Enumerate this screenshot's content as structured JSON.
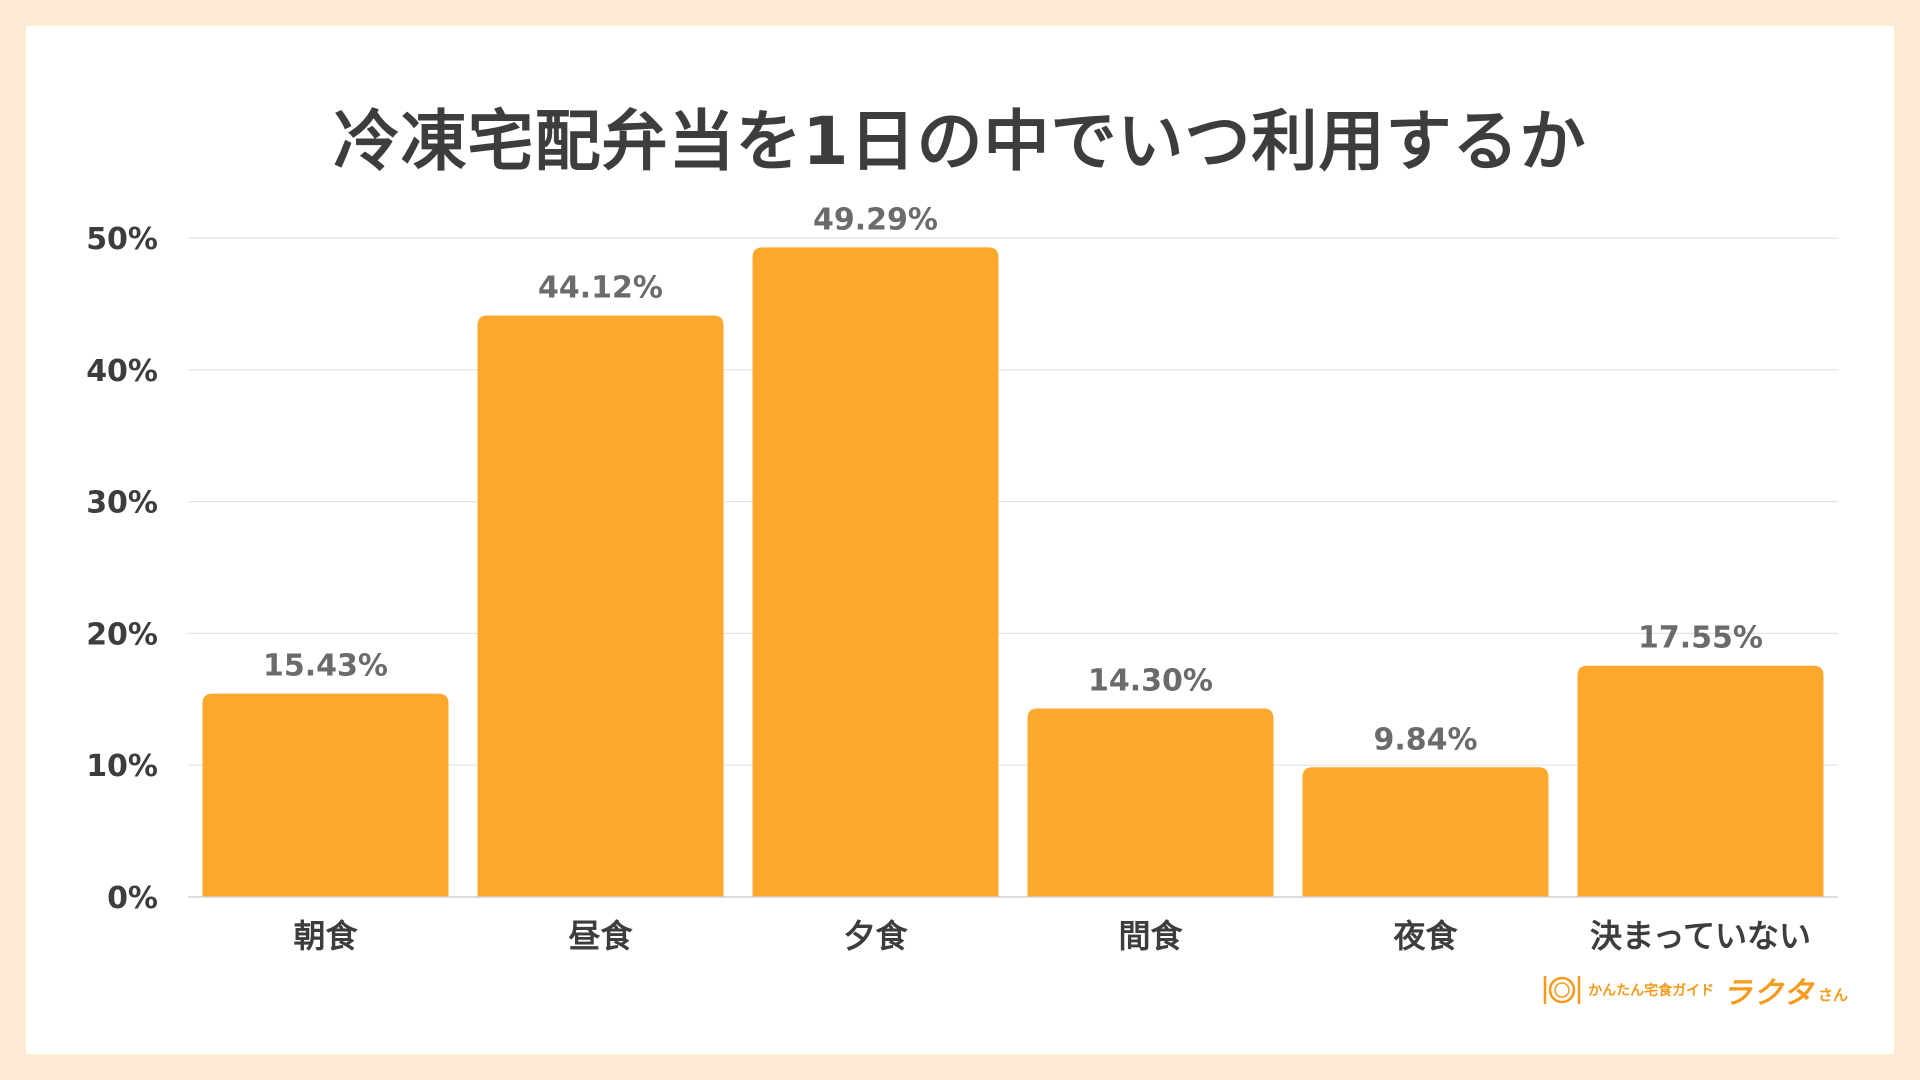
{
  "chart_data": {
    "type": "bar",
    "title": "冷凍宅配弁当を1日の中でいつ利用するか",
    "categories": [
      "朝食",
      "昼食",
      "夕食",
      "間食",
      "夜食",
      "決まっていない"
    ],
    "values": [
      15.43,
      44.12,
      49.29,
      14.3,
      9.84,
      17.55
    ],
    "value_labels": [
      "15.43%",
      "44.12%",
      "49.29%",
      "14.30%",
      "9.84%",
      "17.55%"
    ],
    "yticks": [
      "0%",
      "10%",
      "20%",
      "30%",
      "40%",
      "50%"
    ],
    "ylim": [
      0,
      50
    ],
    "grid": true,
    "bar_color": "#fca82c",
    "xlabel": "",
    "ylabel": ""
  },
  "logo": {
    "sub": "かんたん宅食ガイド",
    "brand": "ラクタ",
    "suffix": "さん",
    "icon": "plate-fork-knife-icon"
  },
  "colors": {
    "background": "#fdebd3",
    "text": "#3d3d3d",
    "label": "#6b6b6b",
    "accent": "#f59a1b"
  }
}
